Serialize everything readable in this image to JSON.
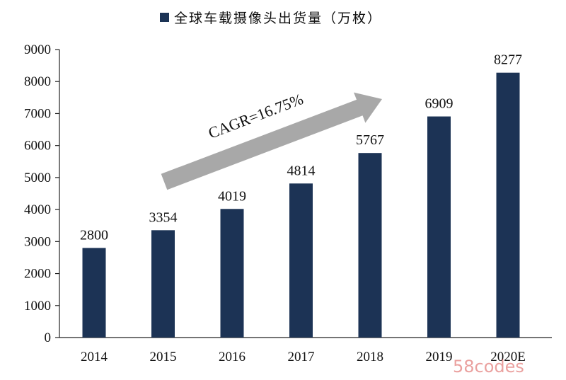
{
  "chart_data": {
    "type": "bar",
    "categories": [
      "2014",
      "2015",
      "2016",
      "2017",
      "2018",
      "2019",
      "2020E"
    ],
    "series": [
      {
        "name": "全球车载摄像头出货量（万枚）",
        "values": [
          2800,
          3354,
          4019,
          4814,
          5767,
          6909,
          8277
        ]
      }
    ],
    "data_labels": [
      "2800",
      "3354",
      "4019",
      "4814",
      "5767",
      "6909",
      "8277"
    ],
    "ylim": [
      0,
      9000
    ],
    "yticks": [
      0,
      1000,
      2000,
      3000,
      4000,
      5000,
      6000,
      7000,
      8000,
      9000
    ],
    "grid": false,
    "legend_position": "top",
    "bar_color": "#1c3355",
    "annotation": "CAGR=16.75%",
    "arrow_color": "#a8a8a8"
  },
  "watermark": "58codes"
}
